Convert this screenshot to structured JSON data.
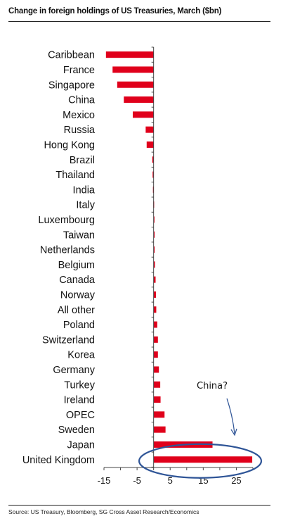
{
  "title": "Change in foreign holdings of US Treasuries, March ($bn)",
  "source": "Source: US Treasury, Bloomberg, SG Cross Asset Research/Economics",
  "colors": {
    "bar": "#e0001b",
    "annotation": "#2f5597",
    "axis": "#444444"
  },
  "chart_data": {
    "type": "bar",
    "orientation": "horizontal",
    "categories": [
      "Caribbean",
      "France",
      "Singapore",
      "China",
      "Mexico",
      "Russia",
      "Hong Kong",
      "Brazil",
      "Thailand",
      "India",
      "Italy",
      "Luxembourg",
      "Taiwan",
      "Netherlands",
      "Belgium",
      "Canada",
      "Norway",
      "All other",
      "Poland",
      "Switzerland",
      "Korea",
      "Germany",
      "Turkey",
      "Ireland",
      "OPEC",
      "Sweden",
      "Japan",
      "United Kingdom"
    ],
    "values": [
      -14.4,
      -12.4,
      -11.0,
      -9.0,
      -6.3,
      -2.4,
      -2.1,
      -0.4,
      -0.3,
      -0.2,
      -0.1,
      0.2,
      0.3,
      0.3,
      0.4,
      0.6,
      0.7,
      0.8,
      1.1,
      1.3,
      1.3,
      1.6,
      2.0,
      2.1,
      3.3,
      3.6,
      17.8,
      29.8
    ],
    "title": "Change in foreign holdings of US Treasuries, March ($bn)",
    "xlim": [
      -15,
      30
    ],
    "xticks": [
      -15,
      -5,
      5,
      15,
      25
    ],
    "xtick_labels": [
      "-15",
      "-5",
      "5",
      "15",
      "25"
    ],
    "legend": "none",
    "grid": false,
    "annotations": [
      {
        "text": "China?",
        "target_category": "United Kingdom"
      }
    ]
  }
}
